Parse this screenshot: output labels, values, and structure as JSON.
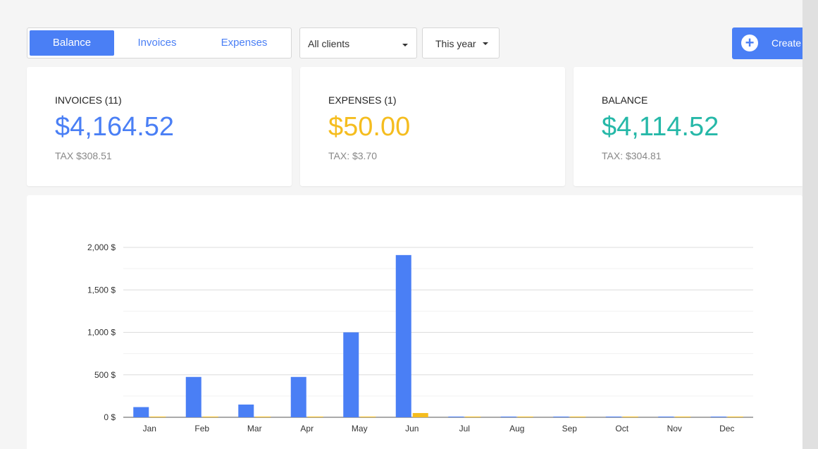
{
  "toolbar": {
    "tabs": [
      {
        "label": "Balance",
        "active": true
      },
      {
        "label": "Invoices",
        "active": false
      },
      {
        "label": "Expenses",
        "active": false
      }
    ],
    "client_filter": "All clients",
    "period_filter": "This year",
    "create_label": "Create"
  },
  "cards": {
    "invoices": {
      "title": "INVOICES (11)",
      "value": "$4,164.52",
      "tax": "TAX $308.51",
      "color": "#4a7ff5"
    },
    "expenses": {
      "title": "EXPENSES (1)",
      "value": "$50.00",
      "tax": "TAX: $3.70",
      "color": "#f5bd1f"
    },
    "balance": {
      "title": "BALANCE",
      "value": "$4,114.52",
      "tax": "TAX: $304.81",
      "color": "#26b8a8"
    }
  },
  "colors": {
    "accent": "#4a7ff5",
    "expense": "#f5bd1f",
    "balance": "#26b8a8"
  },
  "chart_data": {
    "type": "bar",
    "categories": [
      "Jan",
      "Feb",
      "Mar",
      "Apr",
      "May",
      "Jun",
      "Jul",
      "Aug",
      "Sep",
      "Oct",
      "Nov",
      "Dec"
    ],
    "series": [
      {
        "values": [
          120,
          475,
          150,
          475,
          1000,
          1910,
          0,
          0,
          0,
          0,
          0,
          0
        ],
        "color": "#4a7ff5"
      },
      {
        "values": [
          0,
          0,
          0,
          0,
          0,
          50,
          0,
          0,
          0,
          0,
          0,
          0
        ],
        "color": "#f5bd1f"
      }
    ],
    "yticks": [
      "0 $",
      "500 $",
      "1,000 $",
      "1,500 $",
      "2,000 $"
    ],
    "ylim": [
      0,
      2000
    ],
    "grid": true
  }
}
